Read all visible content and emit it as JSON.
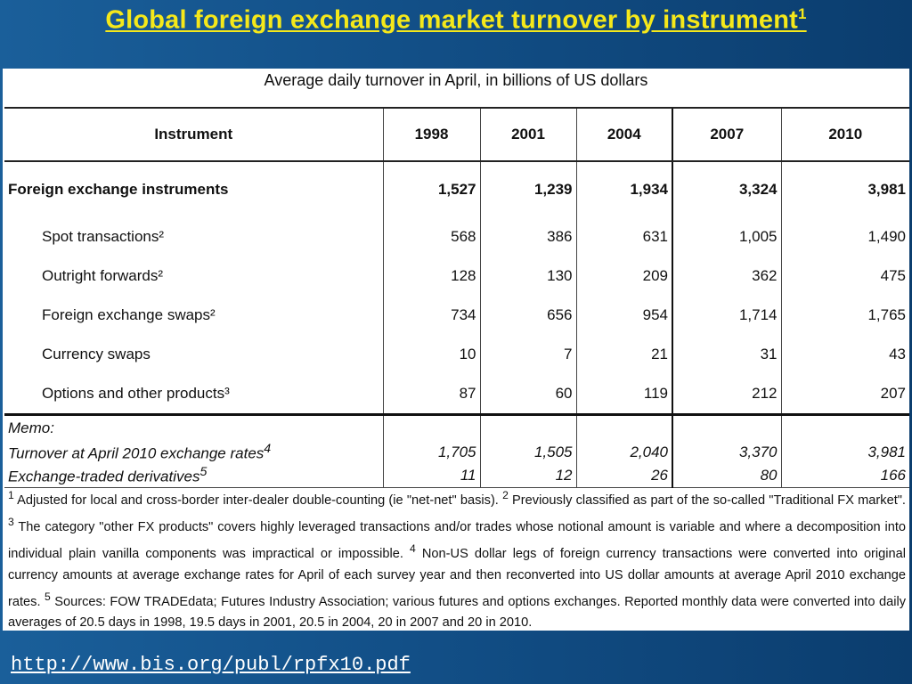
{
  "title": "Global foreign exchange market turnover by instrument",
  "title_footnote": "1",
  "subtitle": "Average daily turnover in April, in billions of US dollars",
  "table": {
    "headers": [
      "Instrument",
      "1998",
      "2001",
      "2004",
      "2007",
      "2010"
    ],
    "rows": [
      {
        "label": "Foreign exchange instruments",
        "values": [
          "1,527",
          "1,239",
          "1,934",
          "3,324",
          "3,981"
        ]
      },
      {
        "label": "Spot transactions²",
        "values": [
          "568",
          "386",
          "631",
          "1,005",
          "1,490"
        ]
      },
      {
        "label": "Outright forwards²",
        "values": [
          "128",
          "130",
          "209",
          "362",
          "475"
        ]
      },
      {
        "label": "Foreign exchange swaps²",
        "values": [
          "734",
          "656",
          "954",
          "1,714",
          "1,765"
        ]
      },
      {
        "label": "Currency swaps",
        "values": [
          "10",
          "7",
          "21",
          "31",
          "43"
        ]
      },
      {
        "label": "Options and other products³",
        "values": [
          "87",
          "60",
          "119",
          "212",
          "207"
        ]
      }
    ],
    "memo_label": "Memo:",
    "memo_rows": [
      {
        "label": "Turnover at April 2010 exchange rates",
        "note": "4",
        "values": [
          "1,705",
          "1,505",
          "2,040",
          "3,370",
          "3,981"
        ]
      },
      {
        "label": "Exchange-traded derivatives",
        "note": "5",
        "values": [
          "11",
          "12",
          "26",
          "80",
          "166"
        ]
      }
    ]
  },
  "footnotes": [
    {
      "num": "1",
      "text": " Adjusted for local and cross-border inter-dealer double-counting (ie \"net-net\" basis). "
    },
    {
      "num": "2",
      "text": " Previously classified as part of the so-called \"Traditional FX market\". "
    },
    {
      "num": "3",
      "text": " The category \"other FX products\" covers highly leveraged transactions and/or trades whose notional amount is variable and where a decomposition into individual plain vanilla components was impractical or impossible. "
    },
    {
      "num": "4",
      "text": " Non-US dollar legs of foreign currency transactions were converted into original currency amounts at average exchange rates for April of each survey year and then reconverted into US dollar amounts at average April 2010 exchange rates. "
    },
    {
      "num": "5",
      "text": " Sources: FOW TRADEdata; Futures Industry Association; various futures and options exchanges. Reported monthly data were converted into daily averages of 20.5 days in 1998, 19.5 days in 2001, 20.5 in 2004, 20 in 2007 and 20 in 2010."
    }
  ],
  "source_link": "http://www.bis.org/publ/rpfx10.pdf",
  "colors": {
    "title": "#f5e81a",
    "background": "#124f87",
    "panel": "#ffffff"
  }
}
